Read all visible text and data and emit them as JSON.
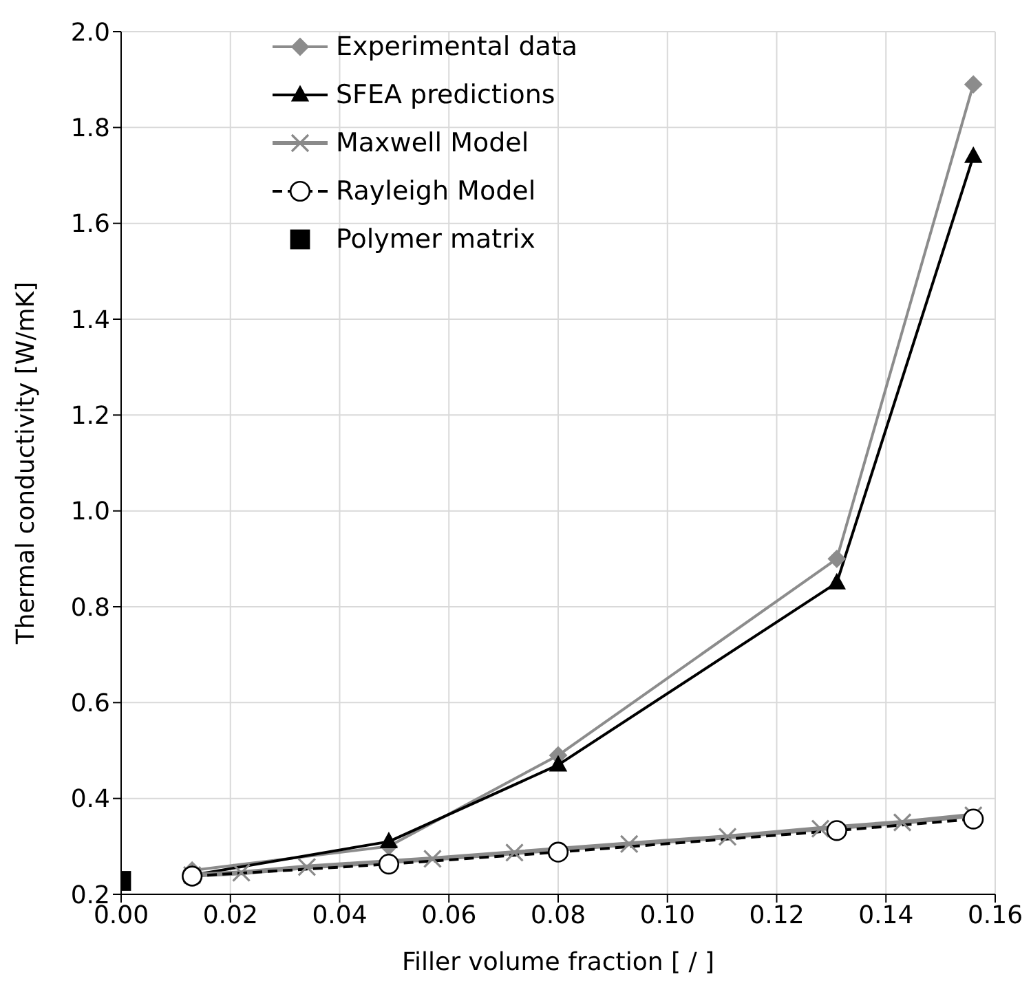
{
  "chart_data": {
    "type": "line",
    "xlabel": "Filler volume fraction [ / ]",
    "ylabel": "Thermal conductivity [W/mK]",
    "xlim": [
      0,
      0.16
    ],
    "xticks": [
      {
        "value": 0,
        "label": "0.00"
      },
      {
        "value": 0.02,
        "label": "0.02"
      },
      {
        "value": 0.04,
        "label": "0.04"
      },
      {
        "value": 0.06,
        "label": "0.06"
      },
      {
        "value": 0.08,
        "label": "0.08"
      },
      {
        "value": 0.1,
        "label": "0.10"
      },
      {
        "value": 0.12,
        "label": "0.12"
      },
      {
        "value": 0.14,
        "label": "0.14"
      },
      {
        "value": 0.16,
        "label": "0.16"
      }
    ],
    "ylim": [
      0.2,
      2
    ],
    "yticks": [
      {
        "value": 0.2,
        "label": "0.2"
      },
      {
        "value": 0.4,
        "label": "0.4"
      },
      {
        "value": 0.6,
        "label": "0.6"
      },
      {
        "value": 0.8,
        "label": "0.8"
      },
      {
        "value": 1,
        "label": "1.0"
      },
      {
        "value": 1.2,
        "label": "1.2"
      },
      {
        "value": 1.4,
        "label": "1.4"
      },
      {
        "value": 1.6,
        "label": "1.6"
      },
      {
        "value": 1.8,
        "label": "1.8"
      },
      {
        "value": 2,
        "label": "2.0"
      }
    ],
    "grid": true,
    "legend": "top left",
    "series": [
      {
        "name": "Experimental data",
        "color": "#8c8c8c",
        "marker": "diamond",
        "line_style": "solid",
        "x": [
          0.013,
          0.049,
          0.08,
          0.131,
          0.156
        ],
        "values": [
          0.25,
          0.3,
          0.49,
          0.9,
          1.89
        ]
      },
      {
        "name": "SFEA predictions",
        "color": "#000000",
        "marker": "triangle",
        "line_style": "solid",
        "x": [
          0.013,
          0.049,
          0.08,
          0.131,
          0.156
        ],
        "values": [
          0.24,
          0.31,
          0.47,
          0.85,
          1.74
        ]
      },
      {
        "name": "Maxwell Model",
        "color": "#8a8a8a",
        "marker": "cross",
        "line_style": "solid",
        "x": [
          0.013,
          0.022,
          0.034,
          0.057,
          0.072,
          0.093,
          0.111,
          0.128,
          0.143,
          0.156
        ],
        "values": [
          0.24,
          0.245,
          0.257,
          0.274,
          0.287,
          0.305,
          0.32,
          0.337,
          0.35,
          0.365
        ]
      },
      {
        "name": "Rayleigh Model",
        "color": "#000000",
        "marker": "circle",
        "line_style": "dashed",
        "x": [
          0.013,
          0.049,
          0.08,
          0.131,
          0.156
        ],
        "values": [
          0.238,
          0.263,
          0.288,
          0.333,
          0.357
        ]
      },
      {
        "name": "Polymer matrix",
        "type": "scatter",
        "color": "#000000",
        "marker": "square",
        "x": [
          0
        ],
        "values": [
          0.228
        ]
      }
    ]
  }
}
